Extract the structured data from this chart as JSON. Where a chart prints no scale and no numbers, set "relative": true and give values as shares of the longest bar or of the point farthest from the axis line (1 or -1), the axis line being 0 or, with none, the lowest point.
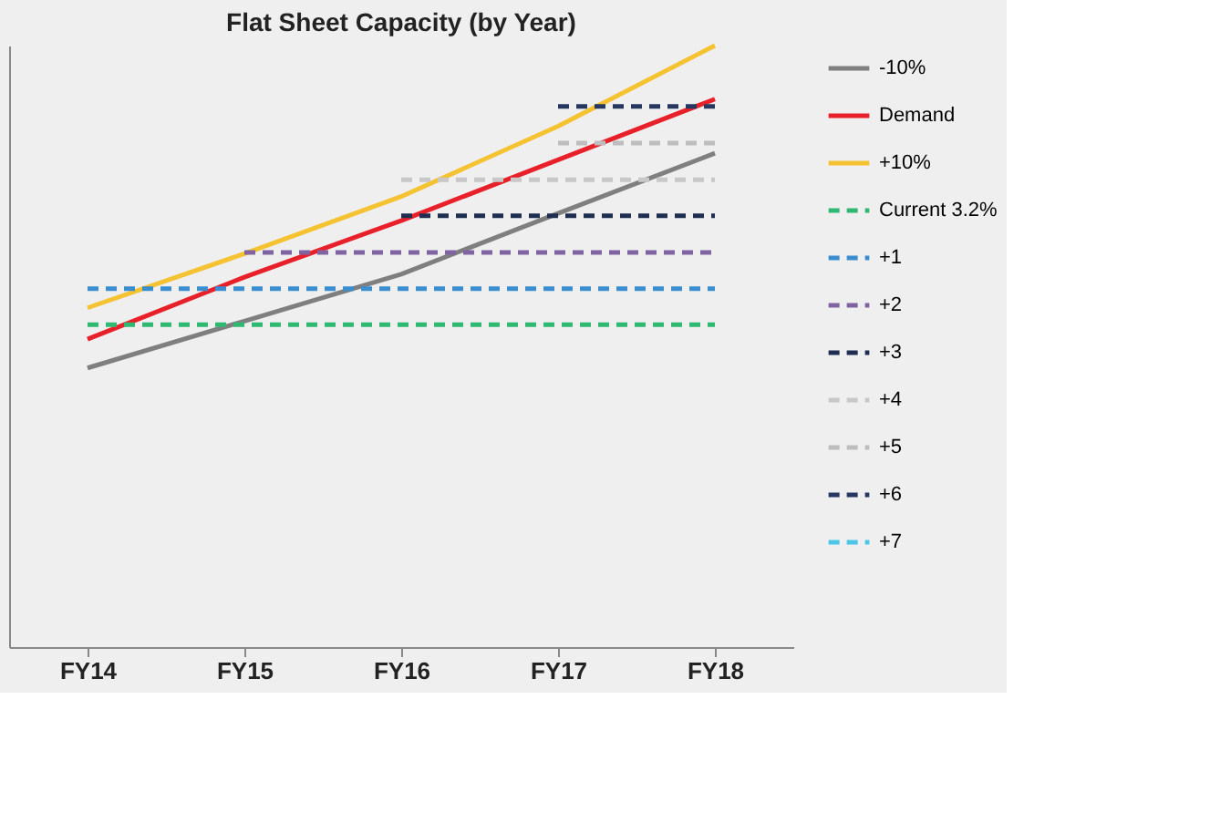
{
  "chart_data": {
    "type": "line",
    "title": "Flat Sheet Capacity  (by Year)",
    "relative": true,
    "legend": "right",
    "grid": false,
    "categories": [
      "FY14",
      "FY15",
      "FY16",
      "FY17",
      "FY18"
    ],
    "series": [
      {
        "name": "-10%",
        "color": "#7f7f7f",
        "line_style": "solid",
        "values": [
          0.464,
          0.542,
          0.62,
          0.721,
          0.821
        ]
      },
      {
        "name": "Demand",
        "color": "#e8202a",
        "line_style": "solid",
        "values": [
          0.512,
          0.615,
          0.709,
          0.81,
          0.911
        ]
      },
      {
        "name": "+10%",
        "color": "#f5c231",
        "line_style": "solid",
        "values": [
          0.564,
          0.654,
          0.749,
          0.866,
          1
        ]
      },
      {
        "name": "Current 3.2%",
        "color": "#2eb872",
        "line_style": "dashed",
        "values": [
          0.536,
          0.536,
          0.536,
          0.536,
          0.536
        ]
      },
      {
        "name": "+1",
        "color": "#3a8ed0",
        "line_style": "dashed",
        "values": [
          0.596,
          0.596,
          0.596,
          0.596,
          0.596
        ]
      },
      {
        "name": "+2",
        "color": "#8064a2",
        "line_style": "dashed",
        "values": [
          null,
          0.656,
          0.656,
          0.656,
          0.656
        ]
      },
      {
        "name": "+3",
        "color": "#1f2d50",
        "line_style": "dashed",
        "values": [
          null,
          null,
          0.717,
          0.717,
          0.717
        ]
      },
      {
        "name": "+4",
        "color": "#c8c8c8",
        "line_style": "dashed",
        "values": [
          null,
          null,
          0.777,
          0.777,
          0.777
        ]
      },
      {
        "name": "+5",
        "color": "#bdbdbd",
        "line_style": "dashed",
        "values": [
          null,
          null,
          null,
          0.838,
          0.838
        ]
      },
      {
        "name": "+6",
        "color": "#263860",
        "line_style": "dashed",
        "values": [
          null,
          null,
          null,
          0.899,
          0.899
        ]
      },
      {
        "name": "+7",
        "color": "#4bc6e8",
        "line_style": "dashed",
        "values": [
          null,
          null,
          null,
          null,
          null
        ]
      }
    ]
  }
}
